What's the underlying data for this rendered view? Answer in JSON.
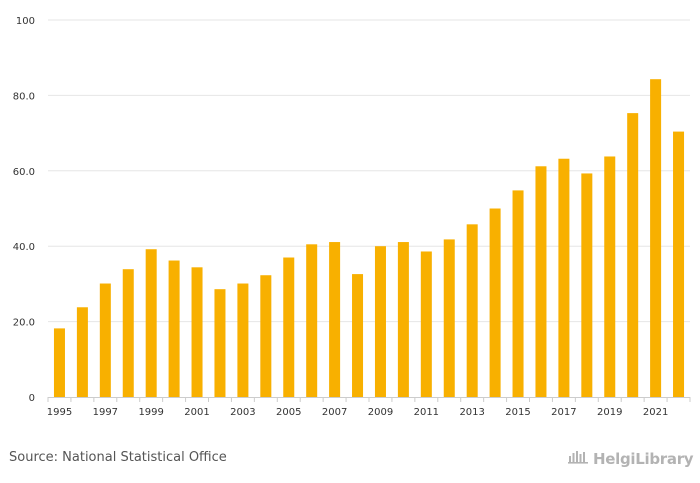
{
  "chart_data": {
    "type": "bar",
    "title": "",
    "xlabel": "",
    "ylabel": "",
    "ylim": [
      0,
      100
    ],
    "yticks": [
      {
        "value": 0,
        "label": "0"
      },
      {
        "value": 20,
        "label": "20.0"
      },
      {
        "value": 40,
        "label": "40.0"
      },
      {
        "value": 60,
        "label": "60.0"
      },
      {
        "value": 80,
        "label": "80.0"
      },
      {
        "value": 100,
        "label": "100"
      }
    ],
    "xtick_labels": [
      "1995",
      "1997",
      "1999",
      "2001",
      "2003",
      "2005",
      "2007",
      "2009",
      "2011",
      "2013",
      "2015",
      "2017",
      "2019",
      "2021"
    ],
    "categories": [
      "1995",
      "1996",
      "1997",
      "1998",
      "1999",
      "2000",
      "2001",
      "2002",
      "2003",
      "2004",
      "2005",
      "2006",
      "2007",
      "2008",
      "2009",
      "2010",
      "2011",
      "2012",
      "2013",
      "2014",
      "2015",
      "2016",
      "2017",
      "2018",
      "2019",
      "2020",
      "2021",
      "2022"
    ],
    "values": [
      18.2,
      23.8,
      30.1,
      33.9,
      39.2,
      36.2,
      34.4,
      28.6,
      30.1,
      32.3,
      37.0,
      40.5,
      41.1,
      32.6,
      40.0,
      41.1,
      38.6,
      41.8,
      45.8,
      50.0,
      54.8,
      61.2,
      63.2,
      59.3,
      63.8,
      75.3,
      84.3,
      70.4
    ],
    "bar_color": "#f8b000",
    "grid": true
  },
  "footer": {
    "source": "Source: National Statistical Office",
    "brand_name": "HelgiLibrary",
    "brand_icon": "helgi-logo-icon"
  }
}
